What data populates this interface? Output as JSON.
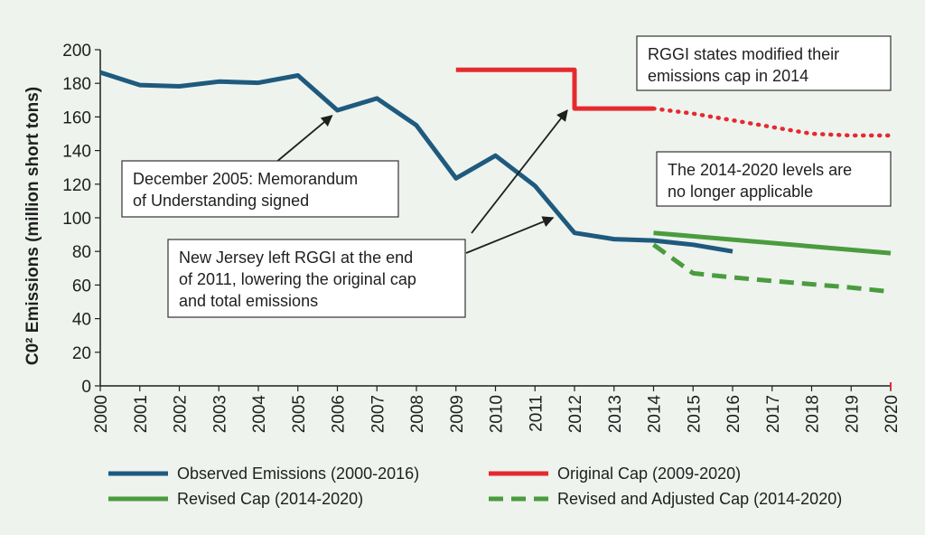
{
  "chart_data": {
    "type": "line",
    "ylabel": "C0² Emissions (million short tons)",
    "ylim": [
      0,
      200
    ],
    "yticks": [
      0,
      20,
      40,
      60,
      80,
      100,
      120,
      140,
      160,
      180,
      200
    ],
    "xticks": [
      2000,
      2001,
      2002,
      2003,
      2004,
      2005,
      2006,
      2007,
      2008,
      2009,
      2010,
      2011,
      2012,
      2013,
      2014,
      2015,
      2016,
      2017,
      2018,
      2019,
      2020
    ],
    "xlim": [
      2000,
      2020
    ],
    "grid": false,
    "legend_position": "bottom",
    "colors": {
      "observed": "#1f5a7e",
      "original_cap": "#e52a2e",
      "revised_cap": "#4a9c3e"
    },
    "series": [
      {
        "key": "observed",
        "name": "Observed Emissions (2000-2016)",
        "style": "solid",
        "color": "#1f5a7e",
        "points": [
          [
            2000,
            186.5
          ],
          [
            2001,
            179
          ],
          [
            2002,
            178.2
          ],
          [
            2003,
            181
          ],
          [
            2004,
            180.3
          ],
          [
            2005,
            184.7
          ],
          [
            2006,
            164
          ],
          [
            2007,
            171
          ],
          [
            2008,
            155
          ],
          [
            2009,
            123.5
          ],
          [
            2010,
            137
          ],
          [
            2011,
            119
          ],
          [
            2012,
            91
          ],
          [
            2013,
            87.3
          ],
          [
            2014,
            86.5
          ],
          [
            2015,
            84
          ],
          [
            2016,
            80
          ]
        ]
      },
      {
        "key": "original_cap",
        "name": "Original Cap (2009-2020)",
        "style": "solid",
        "color": "#e52a2e",
        "points": [
          [
            2009,
            188
          ],
          [
            2012,
            188
          ],
          [
            2012,
            165
          ],
          [
            2014,
            165
          ]
        ]
      },
      {
        "key": "original_cap_dotted",
        "name": "",
        "style": "dotted",
        "color": "#e52a2e",
        "points": [
          [
            2014,
            165
          ],
          [
            2015,
            162
          ],
          [
            2016,
            158
          ],
          [
            2017,
            154
          ],
          [
            2018,
            150
          ],
          [
            2019,
            149
          ],
          [
            2020,
            149
          ]
        ]
      },
      {
        "key": "revised_cap",
        "name": "Revised Cap (2014-2020)",
        "style": "solid",
        "color": "#4a9c3e",
        "points": [
          [
            2014,
            91
          ],
          [
            2020,
            79
          ]
        ]
      },
      {
        "key": "revised_adjusted_cap",
        "name": "Revised and Adjusted Cap (2014-2020)",
        "style": "dashed",
        "color": "#4a9c3e",
        "points": [
          [
            2014,
            84
          ],
          [
            2015,
            67
          ],
          [
            2016,
            64.5
          ],
          [
            2017,
            62.5
          ],
          [
            2018,
            60.5
          ],
          [
            2019,
            58.5
          ],
          [
            2020,
            56
          ]
        ]
      }
    ],
    "annotations": [
      {
        "key": "mou",
        "lines": [
          "December 2005: Memorandum",
          "of Understanding signed"
        ]
      },
      {
        "key": "nj",
        "lines": [
          "New Jersey left RGGI at the end",
          "of 2011, lowering the original cap",
          "and total emissions"
        ]
      },
      {
        "key": "modified",
        "lines": [
          "RGGI states modified their",
          "emissions cap in 2014"
        ]
      },
      {
        "key": "levels",
        "lines": [
          "The 2014-2020 levels are",
          "no longer applicable"
        ]
      }
    ],
    "legend": [
      {
        "label": "Observed Emissions (2000-2016)",
        "color": "#1f5a7e",
        "style": "solid"
      },
      {
        "label": "Original Cap (2009-2020)",
        "color": "#e52a2e",
        "style": "solid"
      },
      {
        "label": "Revised Cap (2014-2020)",
        "color": "#4a9c3e",
        "style": "solid"
      },
      {
        "label": "Revised and Adjusted Cap (2014-2020)",
        "color": "#4a9c3e",
        "style": "dashed"
      }
    ]
  }
}
